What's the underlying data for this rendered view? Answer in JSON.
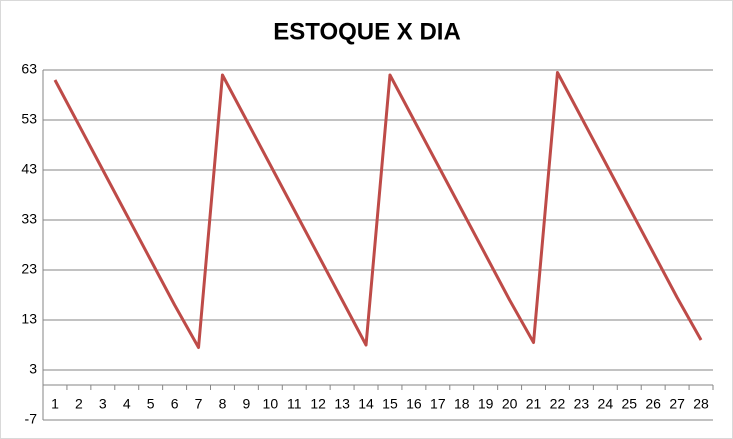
{
  "chart_data": {
    "type": "line",
    "title": "ESTOQUE X DIA",
    "categories": [
      "1",
      "2",
      "3",
      "4",
      "5",
      "6",
      "7",
      "8",
      "9",
      "10",
      "11",
      "12",
      "13",
      "14",
      "15",
      "16",
      "17",
      "18",
      "19",
      "20",
      "21",
      "22",
      "23",
      "24",
      "25",
      "26",
      "27",
      "28"
    ],
    "series": [
      {
        "color": "#be4b48",
        "values": [
          61,
          52,
          43,
          34,
          25,
          16,
          7.5,
          62,
          53,
          44,
          35,
          26,
          17,
          8,
          62,
          53,
          44,
          35,
          26,
          17,
          8.5,
          62.5,
          53.5,
          44.5,
          35.5,
          26.5,
          17.5,
          9
        ]
      }
    ],
    "ylim": [
      -7,
      63
    ],
    "yticks": [
      -7,
      3,
      13,
      23,
      33,
      43,
      53,
      63
    ],
    "grid": true
  }
}
